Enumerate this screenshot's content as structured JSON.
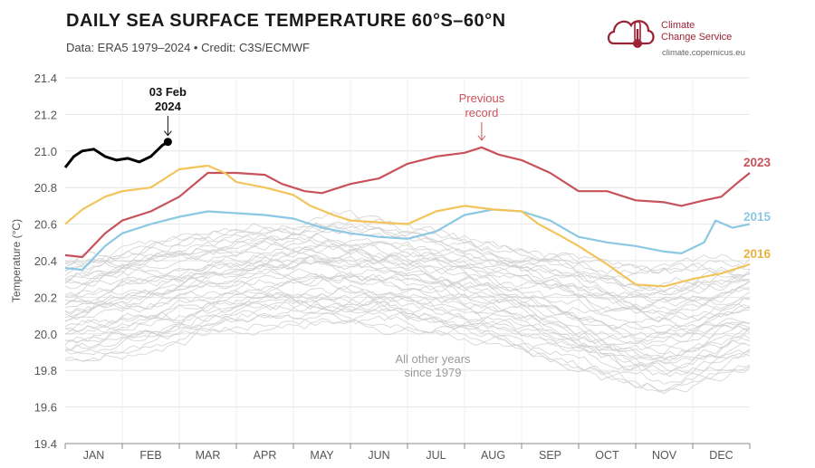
{
  "header": {
    "title": "DAILY SEA SURFACE TEMPERATURE 60°S–60°N",
    "subtitle": "Data: ERA5 1979–2024 • Credit: C3S/ECMWF"
  },
  "logo": {
    "line1": "Climate",
    "line2": "Change Service",
    "url": "climate.copernicus.eu"
  },
  "colors": {
    "y2023": "#c8525a",
    "y2015": "#8cc8e4",
    "y2016": "#f2c45a",
    "y2024": "#000000",
    "others": "#cfcfcf"
  },
  "chart_data": {
    "type": "line",
    "title": "DAILY SEA SURFACE TEMPERATURE 60°S–60°N",
    "xlabel": "",
    "ylabel": "Temperature (°C)",
    "ylim": [
      19.4,
      21.4
    ],
    "yticks": [
      "19.4",
      "19.6",
      "19.8",
      "20.0",
      "20.2",
      "20.4",
      "20.6",
      "20.8",
      "21.0",
      "21.2",
      "21.4"
    ],
    "months": [
      "JAN",
      "FEB",
      "MAR",
      "APR",
      "MAY",
      "JUN",
      "JUL",
      "AUG",
      "SEP",
      "OCT",
      "NOV",
      "DEC"
    ],
    "x_unit": "month (0 = 1 Jan, 12 = 31 Dec)",
    "series": [
      {
        "name": "2023",
        "label": "2023",
        "x": [
          0,
          0.3,
          0.7,
          1.0,
          1.5,
          2.0,
          2.5,
          3.0,
          3.5,
          3.8,
          4.2,
          4.5,
          5.0,
          5.5,
          6.0,
          6.5,
          7.0,
          7.3,
          7.6,
          8.0,
          8.5,
          9.0,
          9.5,
          10.0,
          10.5,
          10.8,
          11.2,
          11.5,
          11.8,
          12.0
        ],
        "values": [
          20.43,
          20.42,
          20.55,
          20.62,
          20.67,
          20.75,
          20.88,
          20.88,
          20.87,
          20.82,
          20.78,
          20.77,
          20.82,
          20.85,
          20.93,
          20.97,
          20.99,
          21.02,
          20.98,
          20.95,
          20.88,
          20.78,
          20.78,
          20.73,
          20.72,
          20.7,
          20.73,
          20.75,
          20.83,
          20.88
        ]
      },
      {
        "name": "2015",
        "label": "2015",
        "x": [
          0,
          0.3,
          0.7,
          1.0,
          1.5,
          2.0,
          2.5,
          3.0,
          3.5,
          4.0,
          4.5,
          5.0,
          5.5,
          6.0,
          6.5,
          7.0,
          7.5,
          8.0,
          8.5,
          9.0,
          9.5,
          10.0,
          10.5,
          10.8,
          11.2,
          11.4,
          11.7,
          12.0
        ],
        "values": [
          20.36,
          20.35,
          20.48,
          20.55,
          20.6,
          20.64,
          20.67,
          20.66,
          20.65,
          20.63,
          20.58,
          20.55,
          20.53,
          20.52,
          20.56,
          20.65,
          20.68,
          20.67,
          20.62,
          20.53,
          20.5,
          20.48,
          20.45,
          20.44,
          20.5,
          20.62,
          20.58,
          20.6
        ]
      },
      {
        "name": "2016",
        "label": "2016",
        "x": [
          0,
          0.3,
          0.7,
          1.0,
          1.5,
          2.0,
          2.5,
          2.8,
          3.0,
          3.5,
          4.0,
          4.3,
          4.7,
          5.0,
          5.5,
          6.0,
          6.5,
          7.0,
          7.5,
          8.0,
          8.3,
          8.6,
          9.0,
          9.5,
          10.0,
          10.5,
          11.0,
          11.5,
          12.0
        ],
        "values": [
          20.6,
          20.68,
          20.75,
          20.78,
          20.8,
          20.9,
          20.92,
          20.88,
          20.83,
          20.8,
          20.76,
          20.7,
          20.65,
          20.62,
          20.61,
          20.6,
          20.67,
          20.7,
          20.68,
          20.67,
          20.6,
          20.55,
          20.48,
          20.38,
          20.27,
          20.26,
          20.3,
          20.33,
          20.38
        ]
      },
      {
        "name": "2024",
        "label": "03 Feb 2024",
        "x": [
          0,
          0.15,
          0.3,
          0.5,
          0.7,
          0.9,
          1.1,
          1.3,
          1.5,
          1.7,
          1.8
        ],
        "values": [
          20.91,
          20.97,
          21.0,
          21.01,
          20.97,
          20.95,
          20.96,
          20.94,
          20.97,
          21.03,
          21.05
        ]
      }
    ],
    "annotations": {
      "latest_point": "03 Feb",
      "latest_year": "2024",
      "previous_record": [
        "Previous",
        "record"
      ],
      "others_label": [
        "All other years",
        "since 1979"
      ]
    }
  }
}
